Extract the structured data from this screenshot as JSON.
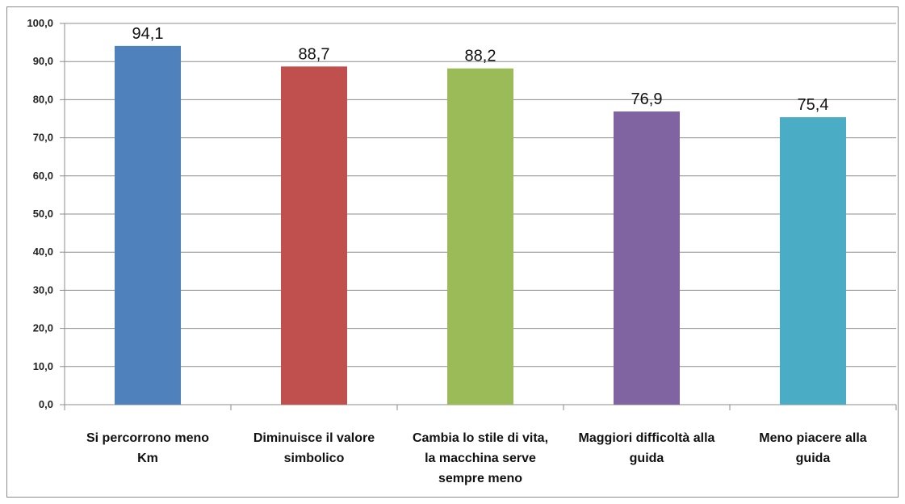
{
  "chart_data": {
    "type": "bar",
    "title": "",
    "xlabel": "",
    "ylabel": "",
    "ylim": [
      0,
      100
    ],
    "ytick_step": 10,
    "ytick_labels": [
      "0,0",
      "10,0",
      "20,0",
      "30,0",
      "40,0",
      "50,0",
      "60,0",
      "70,0",
      "80,0",
      "90,0",
      "100,0"
    ],
    "grid": true,
    "legend": "none",
    "categories": [
      [
        "Si percorrono meno",
        "Km"
      ],
      [
        "Diminuisce il valore",
        "simbolico"
      ],
      [
        "Cambia lo stile di vita,",
        "la macchina serve",
        "sempre meno"
      ],
      [
        "Maggiori difficoltà alla",
        "guida"
      ],
      [
        "Meno piacere alla",
        "guida"
      ]
    ],
    "values": [
      94.1,
      88.7,
      88.2,
      76.9,
      75.4
    ],
    "value_labels": [
      "94,1",
      "88,7",
      "88,2",
      "76,9",
      "75,4"
    ],
    "colors": [
      "#4f81bd",
      "#c0504d",
      "#9bbb59",
      "#8064a2",
      "#4bacc6"
    ]
  }
}
